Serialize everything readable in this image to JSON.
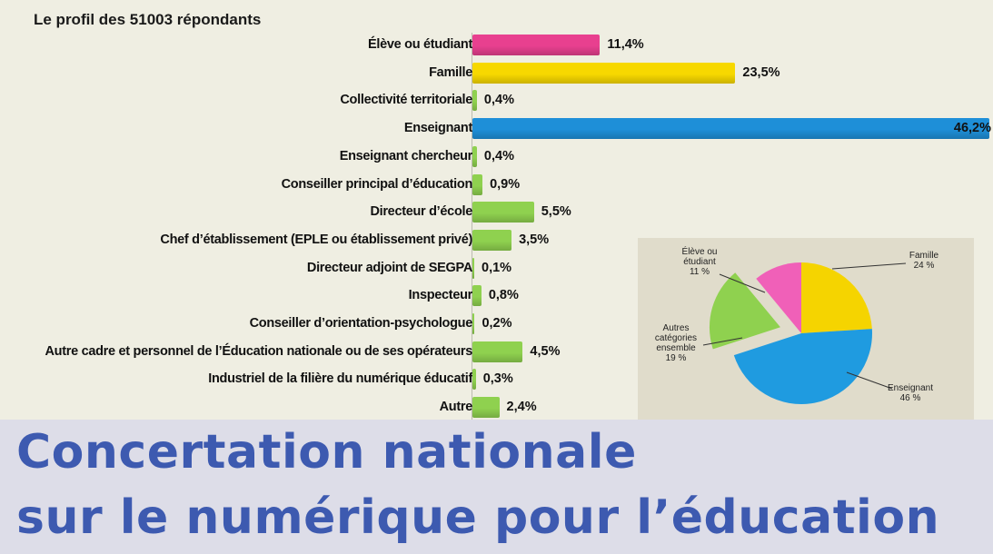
{
  "chart_data": [
    {
      "type": "bar",
      "title": "Le profil des 51003 répondants",
      "orientation": "horizontal",
      "categories": [
        "Élève ou étudiant",
        "Famille",
        "Collectivité territoriale",
        "Enseignant",
        "Enseignant chercheur",
        "Conseiller principal d’éducation",
        "Directeur d’école",
        "Chef d’établissement (EPLE ou établissement privé)",
        "Directeur adjoint de SEGPA",
        "Inspecteur",
        "Conseiller d’orientation-psychologue",
        "Autre cadre et personnel de l’Éducation nationale ou de ses opérateurs",
        "Industriel de la filière du numérique éducatif",
        "Autre"
      ],
      "values": [
        11.4,
        23.5,
        0.4,
        46.2,
        0.4,
        0.9,
        5.5,
        3.5,
        0.1,
        0.8,
        0.2,
        4.5,
        0.3,
        2.4
      ],
      "value_labels": [
        "11,4%",
        "23,5%",
        "0,4%",
        "46,2%",
        "0,4%",
        "0,9%",
        "5,5%",
        "3,5%",
        "0,1%",
        "0,8%",
        "0,2%",
        "4,5%",
        "0,3%",
        "2,4%"
      ],
      "bar_colors": [
        "#e8408f",
        "#f7d800",
        "#8fd14f",
        "#1e8fd8",
        "#8fd14f",
        "#8fd14f",
        "#8fd14f",
        "#8fd14f",
        "#8fd14f",
        "#8fd14f",
        "#8fd14f",
        "#8fd14f",
        "#8fd14f",
        "#8fd14f"
      ],
      "xlim": [
        0,
        46.2
      ],
      "grid": false
    },
    {
      "type": "pie",
      "slices": [
        {
          "label": "Famille\n24 %",
          "value": 24,
          "color": "#f5d400"
        },
        {
          "label": "Enseignant\n46 %",
          "value": 46,
          "color": "#1f9be0"
        },
        {
          "label": "Autres\ncatégories\nensemble\n19 %",
          "value": 19,
          "color": "#8fd14f",
          "exploded": true
        },
        {
          "label": "Élève ou\nétudiant\n11 %",
          "value": 11,
          "color": "#f060b8"
        }
      ]
    }
  ],
  "banner": {
    "line1": "Concertation nationale",
    "line2": "sur le numérique pour l’éducation"
  }
}
